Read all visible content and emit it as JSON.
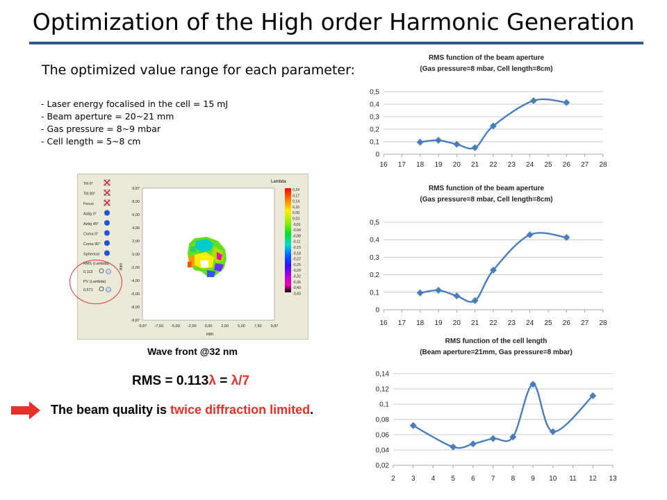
{
  "slide": {
    "title": "Optimization of the High order Harmonic Generation",
    "subheading": "The optimized value range for each parameter:",
    "parameters": [
      "- Laser energy focalised in the cell =  15 mJ",
      "- Beam aperture = 20~21 mm",
      "- Gas pressure = 8~9 mbar",
      "- Cell length = 5~8 cm"
    ],
    "wavefront_caption": "Wave front @32 nm",
    "rms_prefix": "RMS = 0.113",
    "rms_lambda1": "λ",
    "rms_equals": " = ",
    "rms_lambda2": "λ/7",
    "conclusion_start": "The beam quality is ",
    "conclusion_red": "twice diffraction limited",
    "conclusion_end": ".",
    "accent_color": "#2f5597",
    "highlight_color": "#e8302a",
    "arrow_icon": "right-arrow-icon"
  },
  "wavefront_panel": {
    "controls": [
      {
        "label": "Tilt 0°",
        "icon": "x-mark-icon"
      },
      {
        "label": "Tilt 90°",
        "icon": "x-mark-icon"
      },
      {
        "label": "Focus",
        "icon": "x-mark-icon"
      },
      {
        "label": "Astig 0°",
        "icon": "blue-dot-icon"
      },
      {
        "label": "Astig 45°",
        "icon": "blue-dot-icon"
      },
      {
        "label": "Coma 0°",
        "icon": "blue-dot-icon"
      },
      {
        "label": "Coma 90°",
        "icon": "blue-dot-icon"
      },
      {
        "label": "Spherical",
        "icon": "blue-dot-icon"
      }
    ],
    "rms_label": "RMS (Lambda)",
    "rms_value": "0,113",
    "pv_label": "PV (Lambda)",
    "pv_value": "0,671",
    "y_ticks": [
      "9,87",
      "8,00",
      "6,00",
      "4,00",
      "2,00",
      "0,00",
      "-2,00",
      "-4,00",
      "-6,00",
      "-8,00",
      "-9,87"
    ],
    "x_ticks": [
      "-9,87",
      "-7,50",
      "-5,00",
      "-2,50",
      "0,00",
      "2,50",
      "5,00",
      "7,50",
      "9,87"
    ],
    "y_unit": "mm",
    "x_unit": "mm",
    "colorbar_title": "Lambda",
    "colorbar_ticks": [
      "0,24",
      "0,17",
      "0,14",
      "0,10",
      "0,06",
      "0,03",
      "-0,01",
      "-0,04",
      "-0,08",
      "-0,11",
      "-0,15",
      "-0,18",
      "-0,22",
      "-0,25",
      "-0,29",
      "-0,32",
      "-0,36",
      "-0,40",
      "-0,43"
    ]
  },
  "chart_data": [
    {
      "type": "line",
      "title": "RMS function  of the beam aperture",
      "subtitle": "(Gas pressure=8 mbar, Cell length=8cm)",
      "x": [
        18,
        19,
        20,
        21,
        22,
        24.2,
        26
      ],
      "y": [
        0.096,
        0.111,
        0.079,
        0.052,
        0.226,
        0.428,
        0.413
      ],
      "xlim": [
        16,
        28
      ],
      "ylim": [
        0,
        0.5
      ],
      "x_ticks": [
        "16",
        "17",
        "18",
        "19",
        "20",
        "21",
        "22",
        "23",
        "24",
        "25",
        "26",
        "27",
        "28"
      ],
      "y_ticks": [
        "0",
        "0,1",
        "0,2",
        "0,3",
        "0,4",
        "0,5"
      ],
      "grid": true,
      "color": "#4a7ebb"
    },
    {
      "type": "line",
      "title": "RMS function  of the beam aperture",
      "subtitle": "(Gas pressure=8 mbar, Cell length=8cm)",
      "x": [
        18,
        19,
        20,
        21,
        22,
        24,
        26
      ],
      "y": [
        0.096,
        0.111,
        0.079,
        0.052,
        0.226,
        0.428,
        0.413
      ],
      "xlim": [
        16,
        28
      ],
      "ylim": [
        0,
        0.5
      ],
      "x_ticks": [
        "16",
        "17",
        "18",
        "19",
        "20",
        "21",
        "22",
        "23",
        "24",
        "25",
        "26",
        "27",
        "28"
      ],
      "y_ticks": [
        "0",
        "0,1",
        "0,2",
        "0,3",
        "0,4",
        "0,5"
      ],
      "grid": true,
      "color": "#4a7ebb"
    },
    {
      "type": "line",
      "title": "RMS function  of the cell length",
      "subtitle": "(Beam aperture=21mm, Gas pressure=8 mbar)",
      "x": [
        3,
        5,
        6,
        7,
        8,
        9,
        10,
        12
      ],
      "y": [
        0.072,
        0.044,
        0.048,
        0.055,
        0.057,
        0.126,
        0.064,
        0.111
      ],
      "xlim": [
        2,
        13
      ],
      "ylim": [
        0.02,
        0.14
      ],
      "x_ticks": [
        "2",
        "3",
        "4",
        "5",
        "6",
        "7",
        "8",
        "9",
        "10",
        "11",
        "12",
        "13"
      ],
      "y_ticks": [
        "0,02",
        "0,04",
        "0,06",
        "0,08",
        "0,1",
        "0,12",
        "0,14"
      ],
      "grid": true,
      "color": "#4a7ebb"
    }
  ]
}
